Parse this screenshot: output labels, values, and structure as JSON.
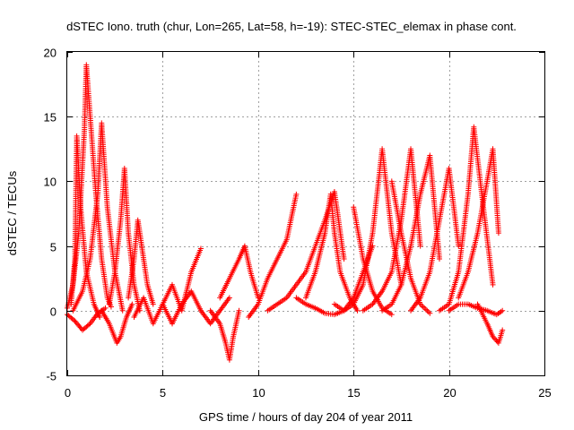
{
  "chart_data": {
    "type": "scatter",
    "title": "dSTEC Iono. truth (chur, Lon=265, Lat=58, h=-19): STEC-STEC_elemax in phase cont.",
    "xlabel": "GPS time / hours of day 204 of year 2011",
    "ylabel": "dSTEC  / TECUs",
    "xlim": [
      0,
      25
    ],
    "ylim": [
      -5,
      20
    ],
    "xticks": [
      0,
      5,
      10,
      15,
      20,
      25
    ],
    "yticks": [
      -5,
      0,
      5,
      10,
      15,
      20
    ],
    "grid": true,
    "legend": "none",
    "marker": "+",
    "color": "#ff0000",
    "tracks": [
      {
        "x": [
          0.0,
          0.3,
          0.6,
          0.9,
          1.0,
          1.2,
          1.5,
          1.8,
          2.1,
          2.3
        ],
        "y": [
          0.2,
          2.0,
          6.0,
          14.0,
          19.0,
          15.0,
          9.0,
          4.0,
          1.0,
          0.3
        ]
      },
      {
        "x": [
          0.2,
          0.4,
          0.5,
          0.7,
          1.0,
          1.4,
          1.7
        ],
        "y": [
          0.5,
          4.0,
          13.5,
          8.0,
          3.0,
          0.5,
          -0.5
        ]
      },
      {
        "x": [
          0.3,
          0.8,
          1.2,
          1.6,
          1.8,
          2.1,
          2.5,
          2.9
        ],
        "y": [
          0.0,
          1.5,
          4.0,
          9.0,
          14.5,
          8.0,
          3.0,
          0.0
        ]
      },
      {
        "x": [
          0.0,
          0.4,
          0.8,
          1.2,
          1.6,
          2.0
        ],
        "y": [
          -0.3,
          -0.8,
          -1.5,
          -1.0,
          -0.2,
          0.2
        ]
      },
      {
        "x": [
          1.8,
          2.2,
          2.6,
          2.8,
          3.1,
          3.4
        ],
        "y": [
          0.0,
          -1.0,
          -2.5,
          -2.0,
          -0.5,
          0.5
        ]
      },
      {
        "x": [
          2.2,
          2.5,
          2.8,
          3.0,
          3.2,
          3.5,
          3.8
        ],
        "y": [
          0.5,
          3.0,
          7.0,
          11.0,
          6.0,
          2.0,
          0.0
        ]
      },
      {
        "x": [
          3.2,
          3.5,
          3.7,
          3.9,
          4.2,
          4.5
        ],
        "y": [
          1.0,
          4.0,
          7.0,
          5.0,
          2.0,
          0.5
        ]
      },
      {
        "x": [
          3.5,
          4.0,
          4.5,
          5.0,
          5.5
        ],
        "y": [
          -0.5,
          1.0,
          -1.0,
          0.5,
          -1.0
        ]
      },
      {
        "x": [
          5.0,
          5.5,
          6.0,
          6.5,
          7.0
        ],
        "y": [
          0.5,
          2.0,
          0.0,
          3.0,
          4.8
        ]
      },
      {
        "x": [
          5.5,
          6.0,
          6.5,
          7.0,
          7.5,
          8.0,
          8.5
        ],
        "y": [
          -1.0,
          0.5,
          1.5,
          0.0,
          -1.0,
          0.0,
          1.0
        ]
      },
      {
        "x": [
          7.5,
          8.0,
          8.3,
          8.5,
          8.7,
          9.0
        ],
        "y": [
          0.0,
          -1.0,
          -2.5,
          -3.8,
          -2.0,
          0.0
        ]
      },
      {
        "x": [
          8.0,
          8.5,
          9.0,
          9.3,
          9.6,
          10.0
        ],
        "y": [
          1.0,
          2.5,
          4.0,
          5.0,
          3.0,
          1.0
        ]
      },
      {
        "x": [
          9.5,
          10.0,
          10.5,
          11.0,
          11.5,
          12.0
        ],
        "y": [
          -0.5,
          0.5,
          2.5,
          4.0,
          5.5,
          9.0
        ]
      },
      {
        "x": [
          10.5,
          11.5,
          12.5,
          13.0,
          13.5,
          14.0,
          14.5
        ],
        "y": [
          0.0,
          1.0,
          3.0,
          5.0,
          7.0,
          9.2,
          4.0
        ]
      },
      {
        "x": [
          12.0,
          12.5,
          13.0,
          13.5,
          14.0,
          14.5,
          15.0,
          15.5,
          16.0
        ],
        "y": [
          1.0,
          0.5,
          0.2,
          -0.2,
          -0.3,
          0.0,
          1.0,
          3.0,
          5.0
        ]
      },
      {
        "x": [
          12.5,
          13.0,
          13.5,
          13.8,
          14.0,
          14.3,
          14.8,
          15.2
        ],
        "y": [
          1.0,
          3.0,
          6.0,
          9.0,
          6.0,
          3.0,
          1.0,
          0.0
        ]
      },
      {
        "x": [
          14.0,
          14.5,
          15.0,
          15.5,
          16.0,
          16.5,
          17.0,
          17.5
        ],
        "y": [
          0.5,
          0.0,
          0.5,
          2.0,
          6.0,
          12.5,
          6.0,
          2.0
        ]
      },
      {
        "x": [
          15.0,
          15.5,
          16.0,
          16.5,
          17.0
        ],
        "y": [
          8.0,
          4.0,
          1.5,
          0.2,
          -0.3
        ]
      },
      {
        "x": [
          15.5,
          16.0,
          16.5,
          17.0,
          17.5,
          18.0,
          18.5
        ],
        "y": [
          0.0,
          0.5,
          1.5,
          3.0,
          7.0,
          12.5,
          5.0
        ]
      },
      {
        "x": [
          16.5,
          17.0,
          17.5,
          18.0,
          18.5,
          19.0,
          19.5
        ],
        "y": [
          0.0,
          0.5,
          2.0,
          5.0,
          9.0,
          12.0,
          4.0
        ]
      },
      {
        "x": [
          17.0,
          17.5,
          18.0,
          18.5,
          19.0
        ],
        "y": [
          10.0,
          6.0,
          2.5,
          0.5,
          -0.2
        ]
      },
      {
        "x": [
          18.0,
          18.5,
          19.0,
          19.5,
          20.0,
          20.5
        ],
        "y": [
          0.0,
          1.0,
          3.0,
          7.0,
          11.0,
          5.0
        ]
      },
      {
        "x": [
          19.5,
          20.0,
          20.5,
          21.0,
          21.3,
          21.8,
          22.3
        ],
        "y": [
          0.0,
          0.5,
          3.0,
          9.0,
          14.2,
          8.0,
          2.0
        ]
      },
      {
        "x": [
          20.5,
          21.0,
          21.5,
          22.0,
          22.3,
          22.6
        ],
        "y": [
          1.0,
          3.0,
          6.0,
          10.0,
          12.5,
          6.0
        ]
      },
      {
        "x": [
          21.5,
          22.0,
          22.3,
          22.6,
          22.8
        ],
        "y": [
          0.5,
          -1.0,
          -2.0,
          -2.5,
          -1.5
        ]
      },
      {
        "x": [
          20.0,
          20.5,
          21.0,
          21.5,
          22.0,
          22.5,
          22.8
        ],
        "y": [
          0.0,
          0.5,
          0.5,
          0.2,
          0.0,
          -0.3,
          0.0
        ]
      }
    ]
  }
}
